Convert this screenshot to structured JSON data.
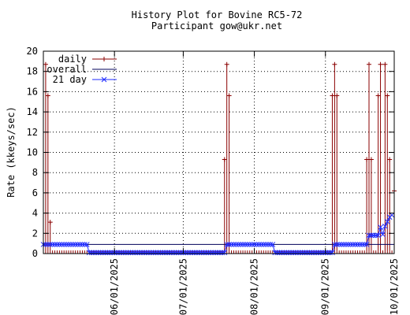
{
  "chart_data": {
    "type": "line",
    "title": "History Plot for Bovine RC5-72",
    "subtitle": "Participant gow@ukr.net",
    "xlabel": "",
    "ylabel": "Rate (kkeys/sec)",
    "x_range": [
      "2025-05-01",
      "2025-10-01"
    ],
    "ylim": [
      0,
      20
    ],
    "y_ticks": [
      "0",
      "2",
      "4",
      "6",
      "8",
      "10",
      "12",
      "14",
      "16",
      "18",
      "20"
    ],
    "x_ticks": [
      {
        "date": "2025-06-01",
        "label": "06/01/2025"
      },
      {
        "date": "2025-07-01",
        "label": "07/01/2025"
      },
      {
        "date": "2025-08-01",
        "label": "08/01/2025"
      },
      {
        "date": "2025-09-01",
        "label": "09/01/2025"
      },
      {
        "date": "2025-10-01",
        "label": "10/01/2025"
      }
    ],
    "grid": true,
    "legend_position": "top-left",
    "series": [
      {
        "name": "daily",
        "color": "#8b0000",
        "style": "impulses with plus markers",
        "points": [
          {
            "x": "2025-05-02",
            "y": 18.7
          },
          {
            "x": "2025-05-03",
            "y": 15.6
          },
          {
            "x": "2025-05-04",
            "y": 3.1
          },
          {
            "x": "2025-07-19",
            "y": 9.3
          },
          {
            "x": "2025-07-20",
            "y": 18.7
          },
          {
            "x": "2025-07-21",
            "y": 15.6
          },
          {
            "x": "2025-09-04",
            "y": 15.6
          },
          {
            "x": "2025-09-05",
            "y": 18.7
          },
          {
            "x": "2025-09-06",
            "y": 15.6
          },
          {
            "x": "2025-09-19",
            "y": 9.3
          },
          {
            "x": "2025-09-20",
            "y": 18.7
          },
          {
            "x": "2025-09-21",
            "y": 9.3
          },
          {
            "x": "2025-09-24",
            "y": 15.6
          },
          {
            "x": "2025-09-25",
            "y": 18.7
          },
          {
            "x": "2025-09-27",
            "y": 18.7
          },
          {
            "x": "2025-09-28",
            "y": 15.6
          },
          {
            "x": "2025-09-29",
            "y": 9.3
          },
          {
            "x": "2025-10-01",
            "y": 6.2
          }
        ]
      },
      {
        "name": "overall",
        "color": "#00005a",
        "style": "line",
        "points": [
          {
            "x": "2025-05-01",
            "y": 0.9
          },
          {
            "x": "2025-10-01",
            "y": 0.9
          }
        ]
      },
      {
        "name": "21 day",
        "color": "#1f2bff",
        "style": "line with x markers",
        "points": [
          {
            "x": "2025-05-01",
            "y": 0.9
          },
          {
            "x": "2025-05-20",
            "y": 0.9
          },
          {
            "x": "2025-05-21",
            "y": 0.1
          },
          {
            "x": "2025-07-19",
            "y": 0.1
          },
          {
            "x": "2025-07-20",
            "y": 0.9
          },
          {
            "x": "2025-08-09",
            "y": 0.9
          },
          {
            "x": "2025-08-10",
            "y": 0.1
          },
          {
            "x": "2025-09-04",
            "y": 0.1
          },
          {
            "x": "2025-09-05",
            "y": 0.9
          },
          {
            "x": "2025-09-19",
            "y": 0.9
          },
          {
            "x": "2025-09-20",
            "y": 1.8
          },
          {
            "x": "2025-09-24",
            "y": 1.8
          },
          {
            "x": "2025-09-25",
            "y": 2.6
          },
          {
            "x": "2025-09-26",
            "y": 1.9
          },
          {
            "x": "2025-09-27",
            "y": 2.7
          },
          {
            "x": "2025-09-29",
            "y": 3.6
          },
          {
            "x": "2025-09-30",
            "y": 3.8
          }
        ]
      }
    ]
  }
}
